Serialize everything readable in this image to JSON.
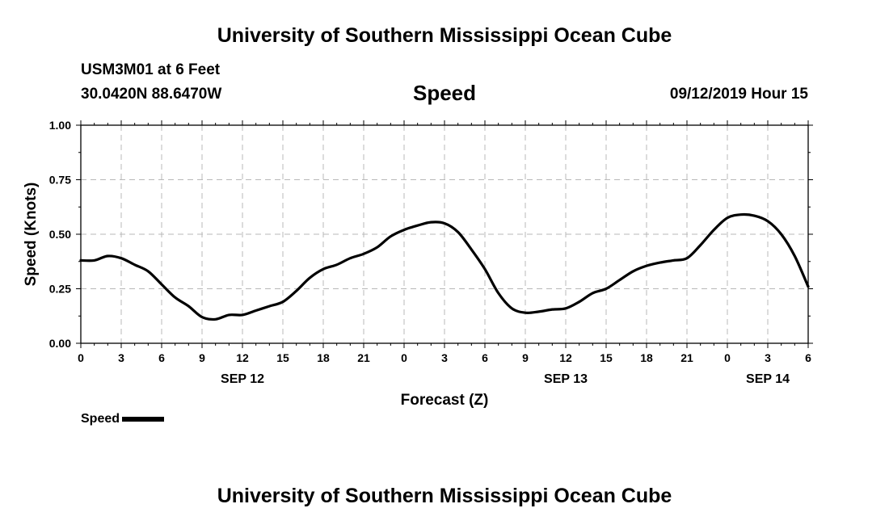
{
  "header": {
    "title": "University of Southern Mississippi Ocean Cube",
    "station": "USM3M01 at 6 Feet",
    "coords": "30.0420N 88.6470W",
    "subtitle": "Speed",
    "datetime": "09/12/2019 Hour 15"
  },
  "footer": {
    "title": "University of Southern Mississippi Ocean Cube"
  },
  "legend": {
    "label": "Speed",
    "color": "#000000"
  },
  "chart_data": {
    "type": "line",
    "title": "Speed",
    "xlabel": "Forecast (Z)",
    "ylabel": "Speed (Knots)",
    "xlim": [
      0,
      54
    ],
    "ylim": [
      0,
      1.0
    ],
    "grid": true,
    "legend_position": "bottom-left",
    "x_ticks": [
      0,
      3,
      6,
      9,
      12,
      15,
      18,
      21,
      24,
      27,
      30,
      33,
      36,
      39,
      42,
      45,
      48,
      51,
      54
    ],
    "x_tick_labels": [
      "0",
      "3",
      "6",
      "9",
      "12",
      "15",
      "18",
      "21",
      "0",
      "3",
      "6",
      "9",
      "12",
      "15",
      "18",
      "21",
      "0",
      "3",
      "6"
    ],
    "y_ticks": [
      0,
      0.25,
      0.5,
      0.75,
      1.0
    ],
    "y_tick_labels": [
      "0.00",
      "0.25",
      "0.50",
      "0.75",
      "1.00"
    ],
    "date_labels": [
      {
        "x": 12,
        "label": "SEP 12"
      },
      {
        "x": 36,
        "label": "SEP 13"
      },
      {
        "x": 51,
        "label": "SEP 14"
      }
    ],
    "series": [
      {
        "name": "Speed",
        "color": "#000000",
        "x": [
          0,
          1,
          2,
          3,
          4,
          5,
          6,
          7,
          8,
          9,
          10,
          11,
          12,
          13,
          14,
          15,
          16,
          17,
          18,
          19,
          20,
          21,
          22,
          23,
          24,
          25,
          26,
          27,
          28,
          29,
          30,
          31,
          32,
          33,
          34,
          35,
          36,
          37,
          38,
          39,
          40,
          41,
          42,
          43,
          44,
          45,
          46,
          47,
          48,
          49,
          50,
          51,
          52,
          53,
          54
        ],
        "y": [
          0.38,
          0.38,
          0.4,
          0.39,
          0.36,
          0.33,
          0.27,
          0.21,
          0.17,
          0.12,
          0.11,
          0.13,
          0.13,
          0.15,
          0.17,
          0.19,
          0.24,
          0.3,
          0.34,
          0.36,
          0.39,
          0.41,
          0.44,
          0.49,
          0.52,
          0.54,
          0.555,
          0.55,
          0.51,
          0.43,
          0.34,
          0.23,
          0.16,
          0.14,
          0.145,
          0.155,
          0.16,
          0.19,
          0.23,
          0.25,
          0.29,
          0.33,
          0.355,
          0.37,
          0.38,
          0.39,
          0.45,
          0.52,
          0.575,
          0.59,
          0.585,
          0.56,
          0.5,
          0.4,
          0.26
        ]
      }
    ]
  }
}
